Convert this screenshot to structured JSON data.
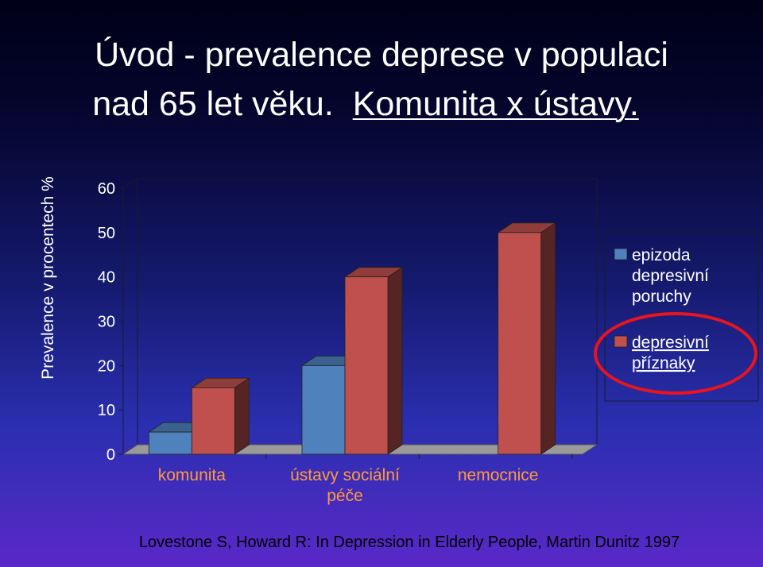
{
  "title": {
    "line1": "Úvod - prevalence deprese v populaci",
    "line2_plain": "nad 65 let věku.",
    "line2_underlined": "Komunita x ústavy."
  },
  "source": "Lovestone S, Howard R: In Depression in Elderly People, Martin Dunitz 1997",
  "chart_data": {
    "type": "bar",
    "title": "",
    "ylabel": "Prevalence v procentech %",
    "xlabel": "",
    "ylim": [
      0,
      60
    ],
    "yticks": [
      0,
      10,
      20,
      30,
      40,
      50,
      60
    ],
    "categories": [
      [
        "komunita"
      ],
      [
        "ústavy sociální",
        "péče"
      ],
      [
        "nemocnice"
      ]
    ],
    "series": [
      {
        "name": "epizoda depresivní poruchy",
        "legend_lines": [
          "epizoda",
          "depresivní",
          "poruchy"
        ],
        "values": [
          5,
          20,
          null
        ],
        "color": "#4f81bd"
      },
      {
        "name": "depresivní příznaky",
        "legend_lines": [
          "depresivní",
          "příznaky"
        ],
        "values": [
          15,
          40,
          50
        ],
        "color": "#c0504d"
      }
    ],
    "grid": false,
    "legend_position": "right",
    "legend_highlight_color": "#e8141e",
    "tick_color": "#ffffff",
    "category_label_color": "#ff9a3c"
  }
}
